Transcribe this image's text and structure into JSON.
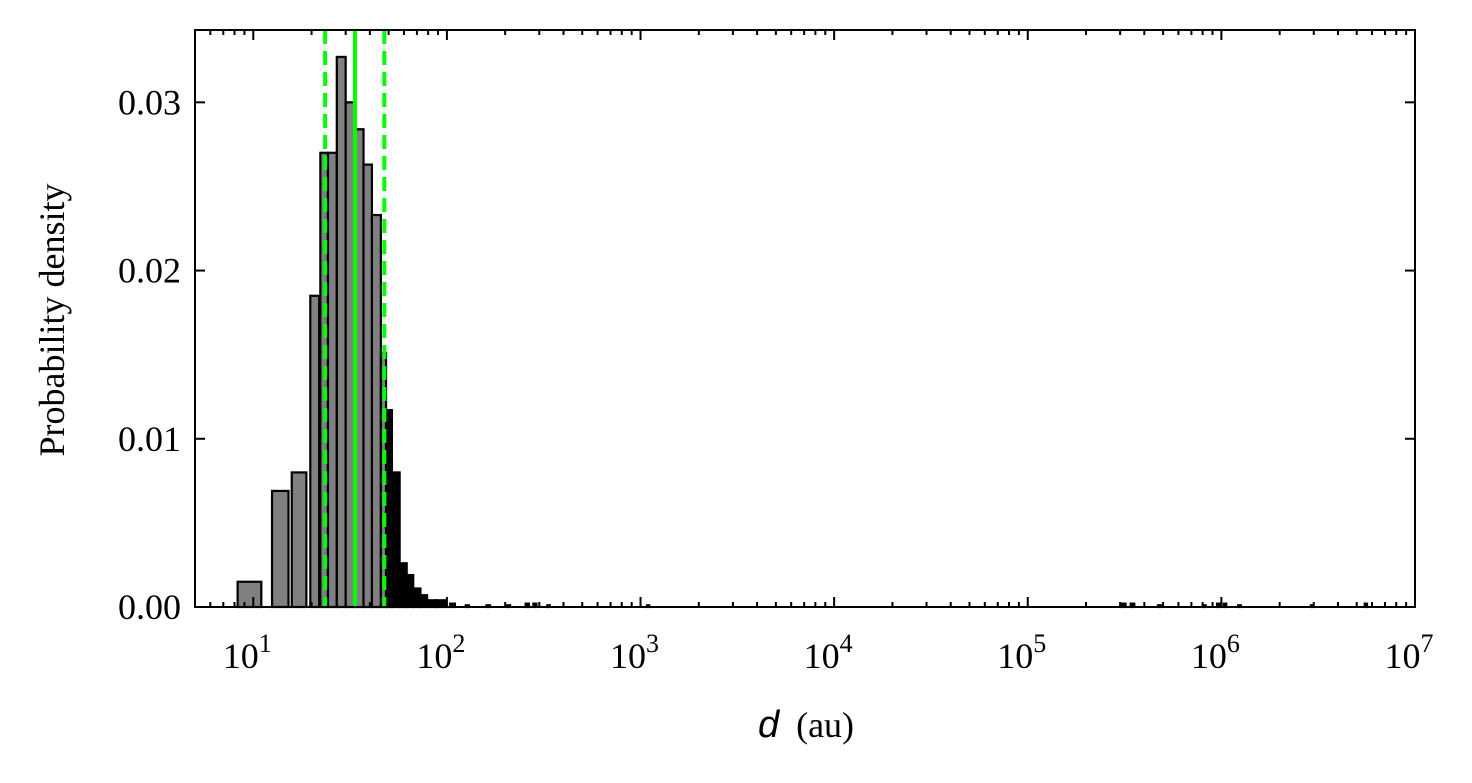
{
  "chart_data": {
    "type": "bar",
    "subtype": "histogram",
    "xscale": "log",
    "xlabel_symbol": "d",
    "xlabel_unit": "(au)",
    "ylabel": "Probability density",
    "xlim": [
      5,
      10000000
    ],
    "ylim": [
      0,
      0.0343
    ],
    "x_ticks": [
      {
        "value": 10,
        "base": "10",
        "exp": "1"
      },
      {
        "value": 100,
        "base": "10",
        "exp": "2"
      },
      {
        "value": 1000,
        "base": "10",
        "exp": "3"
      },
      {
        "value": 10000,
        "base": "10",
        "exp": "4"
      },
      {
        "value": 100000,
        "base": "10",
        "exp": "5"
      },
      {
        "value": 1000000,
        "base": "10",
        "exp": "6"
      },
      {
        "value": 10000000,
        "base": "10",
        "exp": "7"
      }
    ],
    "y_ticks": [
      {
        "value": 0,
        "label": "0.00"
      },
      {
        "value": 0.01,
        "label": "0.01"
      },
      {
        "value": 0.02,
        "label": "0.02"
      },
      {
        "value": 0.03,
        "label": "0.03"
      }
    ],
    "grid": false,
    "legend": "none",
    "bars_fill_low": "#808080",
    "bars_fill_high": "#000000",
    "bar_edge_color": "#000000",
    "marker_color": "#00ff00",
    "bins": [
      {
        "left": 8.3,
        "right": 11.0,
        "density": 0.0015
      },
      {
        "left": 12.5,
        "right": 15.2,
        "density": 0.0069
      },
      {
        "left": 15.8,
        "right": 18.8,
        "density": 0.008
      },
      {
        "left": 19.7,
        "right": 21.9,
        "density": 0.0185
      },
      {
        "left": 22.2,
        "right": 24.3,
        "density": 0.027
      },
      {
        "left": 24.3,
        "right": 27.0,
        "density": 0.027
      },
      {
        "left": 27.0,
        "right": 30.0,
        "density": 0.0327
      },
      {
        "left": 30.0,
        "right": 33.3,
        "density": 0.03
      },
      {
        "left": 33.3,
        "right": 37.1,
        "density": 0.0284
      },
      {
        "left": 37.1,
        "right": 41.0,
        "density": 0.0263
      },
      {
        "left": 41.0,
        "right": 45.6,
        "density": 0.0233
      },
      {
        "left": 45.6,
        "right": 48.5,
        "density": 0.0151
      },
      {
        "left": 48.5,
        "right": 52.0,
        "density": 0.0117
      },
      {
        "left": 52.0,
        "right": 57.0,
        "density": 0.008
      },
      {
        "left": 57.0,
        "right": 62.0,
        "density": 0.0026
      },
      {
        "left": 62.0,
        "right": 67.0,
        "density": 0.0019
      },
      {
        "left": 67.0,
        "right": 73.0,
        "density": 0.0011
      },
      {
        "left": 73.0,
        "right": 79.0,
        "density": 0.0007
      },
      {
        "left": 80.0,
        "right": 88.0,
        "density": 0.0004
      },
      {
        "left": 88.0,
        "right": 99.0,
        "density": 0.0004
      },
      {
        "left": 104.0,
        "right": 110.0,
        "density": 0.0002
      },
      {
        "left": 125.0,
        "right": 130.0,
        "density": 0.0001
      },
      {
        "left": 160.0,
        "right": 167.0,
        "density": 0.0001
      },
      {
        "left": 205.0,
        "right": 212.0,
        "density": 0.0001
      },
      {
        "left": 255.0,
        "right": 265.0,
        "density": 0.0002
      },
      {
        "left": 280.0,
        "right": 290.0,
        "density": 0.0002
      },
      {
        "left": 330.0,
        "right": 340.0,
        "density": 0.0001
      },
      {
        "left": 1080.0,
        "right": 1110.0,
        "density": 0.0001
      },
      {
        "left": 305000,
        "right": 320000,
        "density": 0.0002
      },
      {
        "left": 340000,
        "right": 355000,
        "density": 0.0002
      },
      {
        "left": 470000,
        "right": 490000,
        "density": 0.0001
      },
      {
        "left": 800000,
        "right": 830000,
        "density": 0.0001
      },
      {
        "left": 950000,
        "right": 980000,
        "density": 0.0002
      },
      {
        "left": 1030000,
        "right": 1060000,
        "density": 0.0002
      },
      {
        "left": 1220000,
        "right": 1260000,
        "density": 0.0001
      },
      {
        "left": 2900000,
        "right": 2980000,
        "density": 0.0001
      },
      {
        "left": 5500000,
        "right": 5650000,
        "density": 0.0002
      }
    ],
    "markers": [
      {
        "kind": "lower",
        "x": 23.5,
        "style": "dashed"
      },
      {
        "kind": "median",
        "x": 33.5,
        "style": "solid"
      },
      {
        "kind": "upper",
        "x": 47.5,
        "style": "dashed"
      }
    ]
  }
}
